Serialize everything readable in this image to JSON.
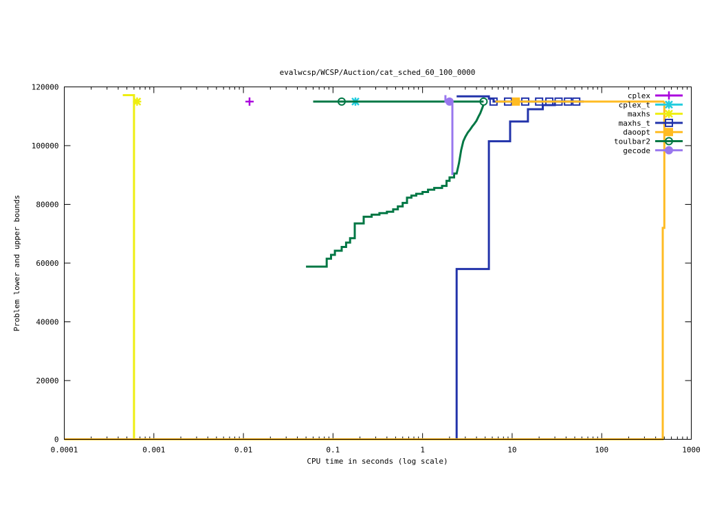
{
  "chart_data": {
    "type": "line",
    "title": "evalwcsp/WCSP/Auction/cat_sched_60_100_0000",
    "xlabel": "CPU time in seconds (log scale)",
    "ylabel": "Problem lower and upper bounds",
    "x_scale": "log",
    "xlim": [
      0.0001,
      1000
    ],
    "ylim": [
      0,
      120000
    ],
    "x_ticks": [
      {
        "value": 0.0001,
        "label": "0.0001"
      },
      {
        "value": 0.001,
        "label": "0.001"
      },
      {
        "value": 0.01,
        "label": "0.01"
      },
      {
        "value": 0.1,
        "label": "0.1"
      },
      {
        "value": 1,
        "label": "1"
      },
      {
        "value": 10,
        "label": "10"
      },
      {
        "value": 100,
        "label": "100"
      },
      {
        "value": 1000,
        "label": "1000"
      }
    ],
    "y_ticks": [
      {
        "value": 0,
        "label": "0"
      },
      {
        "value": 20000,
        "label": "20000"
      },
      {
        "value": 40000,
        "label": "40000"
      },
      {
        "value": 60000,
        "label": "60000"
      },
      {
        "value": 80000,
        "label": "80000"
      },
      {
        "value": 100000,
        "label": "100000"
      },
      {
        "value": 120000,
        "label": "120000"
      }
    ],
    "grid": false,
    "legend_position": "top-right",
    "series": [
      {
        "name": "cplex",
        "color": "#aa00dd",
        "marker": "plus",
        "points": [
          [
            0.0117,
            115000
          ]
        ],
        "lines": [],
        "markers": [
          [
            0.0117,
            115000
          ]
        ]
      },
      {
        "name": "cplex_t",
        "color": "#22ccdd",
        "marker": "star",
        "points": [
          [
            0.178,
            115000
          ]
        ],
        "lines": [],
        "markers": [
          [
            0.178,
            115000
          ]
        ]
      },
      {
        "name": "maxhs",
        "color": "#eeee11",
        "marker": "star",
        "points": [
          [
            0.00065,
            115000
          ]
        ],
        "lines": [
          [
            [
              0.00045,
              117200
            ],
            [
              0.0006,
              117200
            ],
            [
              0.0006,
              115000
            ],
            [
              0.00063,
              115000
            ]
          ],
          [
            [
              0.0001,
              0
            ],
            [
              0.0006,
              0
            ],
            [
              0.0006,
              115000
            ]
          ]
        ],
        "markers": [
          [
            0.00065,
            115000
          ]
        ]
      },
      {
        "name": "maxhs_t",
        "color": "#2233aa",
        "marker": "open-square",
        "points": [
          [
            2.4,
            116800
          ],
          [
            63,
            115000
          ]
        ],
        "lines": [
          [
            [
              2.4,
              116800
            ],
            [
              5.5,
              116800
            ],
            [
              5.5,
              116000
            ],
            [
              6.2,
              116000
            ],
            [
              6.2,
              115000
            ],
            [
              63,
              115000
            ]
          ],
          [
            [
              0.0001,
              0
            ],
            [
              2.4,
              0
            ],
            [
              2.4,
              58000
            ],
            [
              5.5,
              58000
            ],
            [
              5.5,
              101500
            ],
            [
              9.5,
              101500
            ],
            [
              9.5,
              108200
            ],
            [
              15,
              108200
            ],
            [
              15,
              112400
            ],
            [
              22,
              112400
            ],
            [
              22,
              113800
            ],
            [
              30,
              113800
            ],
            [
              30,
              115000
            ],
            [
              63,
              115000
            ]
          ]
        ],
        "markers": [
          [
            6.2,
            115000
          ],
          [
            9.0,
            115000
          ],
          [
            14,
            115000
          ],
          [
            20,
            115000
          ],
          [
            26,
            115000
          ],
          [
            33,
            115000
          ],
          [
            42,
            115000
          ],
          [
            52,
            115000
          ]
        ]
      },
      {
        "name": "daoopt",
        "color": "#ffbb22",
        "marker": "filled-square",
        "points": [
          [
            11,
            115000
          ],
          [
            500,
            115000
          ]
        ],
        "lines": [
          [
            [
              6.5,
              115000
            ],
            [
              500,
              115000
            ]
          ],
          [
            [
              0.0001,
              0
            ],
            [
              480,
              0
            ],
            [
              480,
              72000
            ],
            [
              500,
              72000
            ],
            [
              500,
              115000
            ]
          ]
        ],
        "markers": [
          [
            11,
            115000
          ]
        ]
      },
      {
        "name": "toulbar2",
        "color": "#007744",
        "marker": "open-circle",
        "points": [
          [
            0.06,
            115000
          ],
          [
            4.8,
            115000
          ],
          [
            0.05,
            58800
          ],
          [
            4.8,
            114000
          ]
        ],
        "lines": [
          [
            [
              0.06,
              115000
            ],
            [
              4.8,
              115000
            ]
          ],
          [
            [
              0.05,
              58800
            ],
            [
              0.085,
              58800
            ],
            [
              0.085,
              61500
            ],
            [
              0.095,
              61500
            ],
            [
              0.095,
              62800
            ],
            [
              0.105,
              62800
            ],
            [
              0.105,
              64200
            ],
            [
              0.125,
              64200
            ],
            [
              0.125,
              65500
            ],
            [
              0.14,
              65500
            ],
            [
              0.14,
              67000
            ],
            [
              0.155,
              67000
            ],
            [
              0.155,
              68500
            ],
            [
              0.175,
              68500
            ],
            [
              0.175,
              73500
            ],
            [
              0.22,
              73500
            ],
            [
              0.22,
              75800
            ],
            [
              0.27,
              75800
            ],
            [
              0.27,
              76500
            ],
            [
              0.33,
              76500
            ],
            [
              0.33,
              77000
            ],
            [
              0.4,
              77000
            ],
            [
              0.4,
              77500
            ],
            [
              0.47,
              77500
            ],
            [
              0.47,
              78300
            ],
            [
              0.53,
              78300
            ],
            [
              0.53,
              79300
            ],
            [
              0.6,
              79300
            ],
            [
              0.6,
              80500
            ],
            [
              0.67,
              80500
            ],
            [
              0.67,
              82300
            ],
            [
              0.75,
              82300
            ],
            [
              0.75,
              83000
            ],
            [
              0.85,
              83000
            ],
            [
              0.85,
              83600
            ],
            [
              1.0,
              83600
            ],
            [
              1.0,
              84200
            ],
            [
              1.15,
              84200
            ],
            [
              1.15,
              85000
            ],
            [
              1.35,
              85000
            ],
            [
              1.35,
              85600
            ],
            [
              1.65,
              85600
            ],
            [
              1.65,
              86300
            ],
            [
              1.85,
              86300
            ],
            [
              1.85,
              88000
            ],
            [
              2.0,
              88000
            ],
            [
              2.0,
              89200
            ],
            [
              2.25,
              89200
            ],
            [
              2.25,
              90500
            ],
            [
              2.4,
              90500
            ],
            [
              2.55,
              94000
            ],
            [
              2.7,
              98500
            ],
            [
              2.85,
              101500
            ],
            [
              3.0,
              103000
            ],
            [
              3.2,
              104500
            ],
            [
              3.4,
              105500
            ],
            [
              3.6,
              106600
            ],
            [
              3.8,
              107500
            ],
            [
              4.0,
              108500
            ],
            [
              4.2,
              109800
            ],
            [
              4.4,
              111000
            ],
            [
              4.6,
              112500
            ],
            [
              4.8,
              114000
            ]
          ]
        ],
        "markers": [
          [
            0.125,
            115000
          ],
          [
            4.8,
            115000
          ]
        ]
      },
      {
        "name": "gecode",
        "color": "#9977ee",
        "marker": "filled-circle",
        "points": [
          [
            2.0,
            115000
          ]
        ],
        "lines": [
          [
            [
              1.8,
              117200
            ],
            [
              1.8,
              115000
            ],
            [
              2.15,
              115000
            ],
            [
              2.15,
              90000
            ]
          ]
        ],
        "markers": [
          [
            2.0,
            115000
          ]
        ]
      }
    ]
  }
}
